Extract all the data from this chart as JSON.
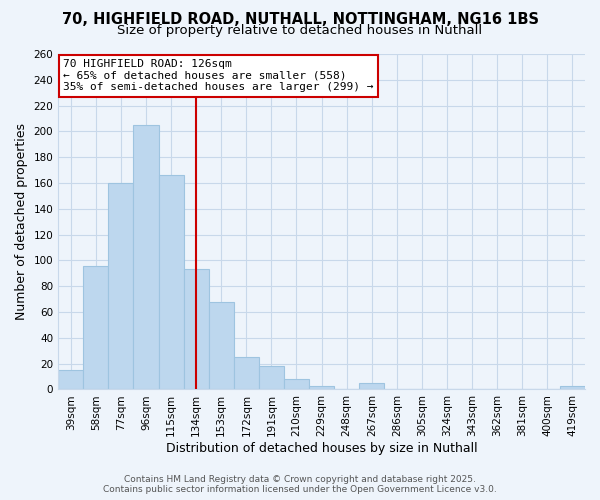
{
  "title_line1": "70, HIGHFIELD ROAD, NUTHALL, NOTTINGHAM, NG16 1BS",
  "title_line2": "Size of property relative to detached houses in Nuthall",
  "xlabel": "Distribution of detached houses by size in Nuthall",
  "ylabel": "Number of detached properties",
  "bar_labels": [
    "39sqm",
    "58sqm",
    "77sqm",
    "96sqm",
    "115sqm",
    "134sqm",
    "153sqm",
    "172sqm",
    "191sqm",
    "210sqm",
    "229sqm",
    "248sqm",
    "267sqm",
    "286sqm",
    "305sqm",
    "324sqm",
    "343sqm",
    "362sqm",
    "381sqm",
    "400sqm",
    "419sqm"
  ],
  "bar_values": [
    15,
    96,
    160,
    205,
    166,
    93,
    68,
    25,
    18,
    8,
    3,
    0,
    5,
    0,
    0,
    0,
    0,
    0,
    0,
    0,
    3
  ],
  "bar_color": "#bdd7ee",
  "bar_edge_color": "#9ec4e0",
  "ylim": [
    0,
    260
  ],
  "yticks": [
    0,
    20,
    40,
    60,
    80,
    100,
    120,
    140,
    160,
    180,
    200,
    220,
    240,
    260
  ],
  "vline_index": 5,
  "vline_color": "#cc0000",
  "annotation_line1": "70 HIGHFIELD ROAD: 126sqm",
  "annotation_line2": "← 65% of detached houses are smaller (558)",
  "annotation_line3": "35% of semi-detached houses are larger (299) →",
  "annotation_box_color": "#ffffff",
  "annotation_box_edge": "#cc0000",
  "footer_line1": "Contains HM Land Registry data © Crown copyright and database right 2025.",
  "footer_line2": "Contains public sector information licensed under the Open Government Licence v3.0.",
  "background_color": "#eef4fb",
  "plot_bg_color": "#eef4fb",
  "grid_color": "#c8d8ea",
  "title_fontsize": 10.5,
  "subtitle_fontsize": 9.5,
  "axis_label_fontsize": 9,
  "tick_fontsize": 7.5,
  "annotation_fontsize": 8,
  "footer_fontsize": 6.5
}
